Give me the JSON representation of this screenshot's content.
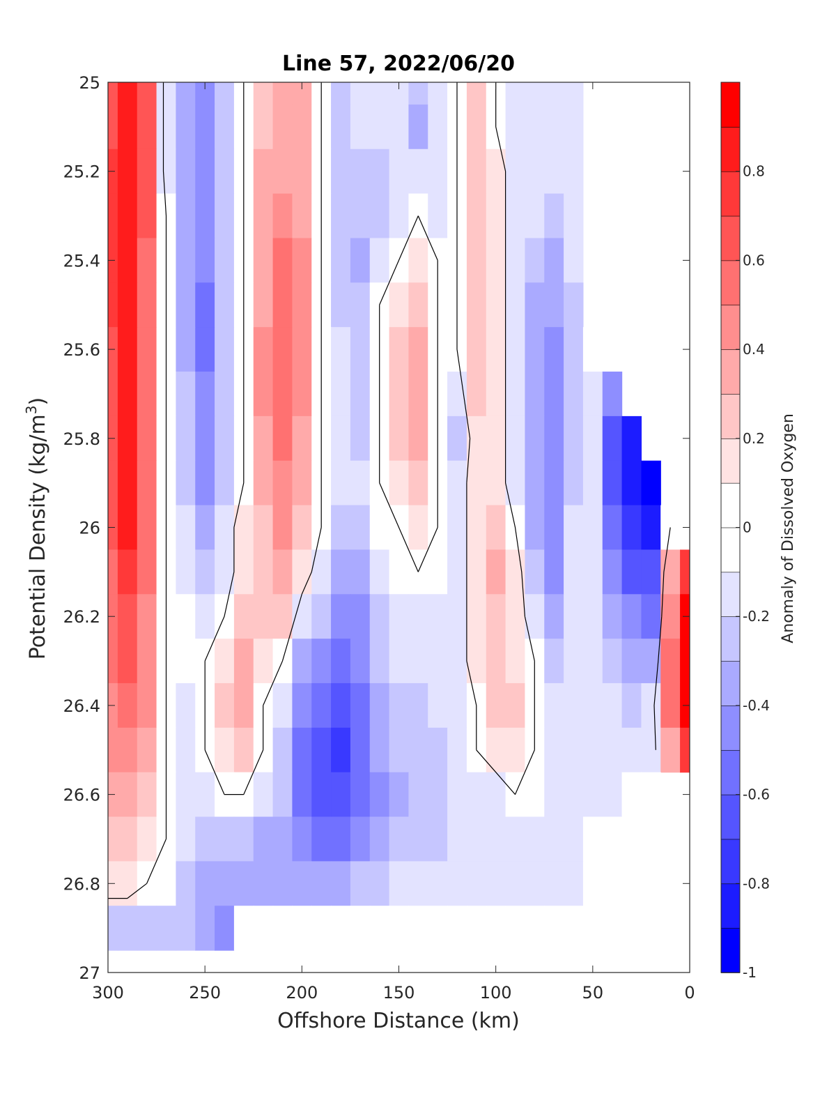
{
  "chart_data": {
    "type": "heatmap",
    "title": "Line 57, 2022/06/20",
    "xlabel": "Offshore Distance (km)",
    "ylabel_main": "Potential Density (kg/m",
    "ylabel_sup": "3",
    "ylabel_close": ")",
    "colorbar_label": "Anomaly of Dissolved Oxygen",
    "xlim": [
      300,
      0
    ],
    "ylim": [
      25,
      27
    ],
    "y_reversed": true,
    "clim": [
      -1,
      1
    ],
    "contour_step": 0.1,
    "grid": false,
    "x_ticks": [
      "300",
      "250",
      "200",
      "150",
      "100",
      "50",
      "0"
    ],
    "y_ticks": [
      "25",
      "25.2",
      "25.4",
      "25.6",
      "25.8",
      "26",
      "26.2",
      "26.4",
      "26.6",
      "26.8",
      "27"
    ],
    "colorbar_ticks": [
      "0.8",
      "0.6",
      "0.4",
      "0.2",
      "0",
      "-0.2",
      "-0.4",
      "-0.6",
      "-0.8",
      "-1"
    ],
    "colors": {
      "positive": "#ff0000",
      "negative": "#0000ff",
      "neutral": "#ffffff",
      "contour_line": "#000000"
    },
    "x_grid_km": [
      300,
      290,
      280,
      270,
      260,
      250,
      240,
      230,
      220,
      210,
      200,
      190,
      180,
      170,
      160,
      150,
      140,
      130,
      120,
      110,
      100,
      90,
      80,
      70,
      60,
      50,
      40,
      30,
      20,
      10,
      0
    ],
    "y_grid_density": [
      25.0,
      25.1,
      25.2,
      25.3,
      25.4,
      25.5,
      25.6,
      25.7,
      25.8,
      25.9,
      26.0,
      26.1,
      26.2,
      26.3,
      26.4,
      26.5,
      26.6,
      26.7,
      26.8,
      26.9
    ],
    "anomaly": [
      [
        0.6,
        0.8,
        0.6,
        -0.1,
        -0.3,
        -0.4,
        -0.2,
        0.0,
        0.2,
        0.3,
        0.3,
        0.0,
        -0.2,
        -0.1,
        -0.1,
        -0.1,
        -0.2,
        -0.1,
        0.0,
        0.2,
        0.0,
        -0.1,
        -0.1,
        -0.1,
        -0.1,
        null,
        null,
        null,
        null,
        null,
        null
      ],
      [
        0.6,
        0.8,
        0.6,
        -0.1,
        -0.3,
        -0.4,
        -0.2,
        0.0,
        0.2,
        0.3,
        0.3,
        0.0,
        -0.2,
        -0.1,
        -0.1,
        -0.1,
        -0.3,
        -0.1,
        0.0,
        0.2,
        0.0,
        -0.1,
        -0.1,
        -0.1,
        -0.1,
        null,
        null,
        null,
        null,
        null,
        null
      ],
      [
        0.7,
        0.8,
        0.6,
        -0.1,
        -0.3,
        -0.4,
        -0.2,
        0.0,
        0.3,
        0.3,
        0.3,
        0.0,
        -0.2,
        -0.2,
        -0.2,
        -0.1,
        -0.1,
        -0.1,
        0.0,
        0.2,
        0.1,
        -0.1,
        -0.1,
        -0.1,
        -0.1,
        null,
        null,
        null,
        null,
        null,
        null
      ],
      [
        0.7,
        0.8,
        0.6,
        0.0,
        -0.3,
        -0.4,
        -0.2,
        0.0,
        0.3,
        0.4,
        0.3,
        0.0,
        -0.2,
        -0.2,
        -0.2,
        -0.1,
        0.0,
        -0.1,
        0.0,
        0.2,
        0.1,
        -0.1,
        -0.1,
        -0.2,
        -0.1,
        null,
        null,
        null,
        null,
        null,
        null
      ],
      [
        0.7,
        0.8,
        0.5,
        0.0,
        -0.3,
        -0.4,
        -0.2,
        0.0,
        0.3,
        0.5,
        0.4,
        0.0,
        -0.2,
        -0.3,
        -0.1,
        0.0,
        0.1,
        0.0,
        0.0,
        0.2,
        0.1,
        -0.1,
        -0.2,
        -0.3,
        -0.1,
        null,
        null,
        null,
        null,
        null,
        null
      ],
      [
        0.7,
        0.8,
        0.5,
        0.0,
        -0.3,
        -0.5,
        -0.2,
        0.0,
        0.3,
        0.5,
        0.4,
        0.0,
        -0.2,
        -0.2,
        0.0,
        0.1,
        0.2,
        0.0,
        0.0,
        0.2,
        0.1,
        -0.1,
        -0.3,
        -0.3,
        -0.2,
        null,
        null,
        null,
        null,
        null,
        null
      ],
      [
        0.6,
        0.8,
        0.5,
        0.0,
        -0.3,
        -0.5,
        -0.2,
        0.0,
        0.4,
        0.5,
        0.4,
        0.0,
        -0.1,
        -0.2,
        0.0,
        0.2,
        0.3,
        0.0,
        0.0,
        0.2,
        0.1,
        -0.1,
        -0.3,
        -0.4,
        -0.2,
        0.0,
        null,
        null,
        null,
        null,
        null
      ],
      [
        0.6,
        0.8,
        0.5,
        0.0,
        -0.2,
        -0.4,
        -0.2,
        0.0,
        0.4,
        0.5,
        0.4,
        0.0,
        -0.1,
        -0.2,
        0.0,
        0.2,
        0.3,
        0.0,
        -0.1,
        0.2,
        0.1,
        -0.1,
        -0.3,
        -0.4,
        -0.2,
        -0.1,
        -0.4,
        null,
        null,
        null,
        null
      ],
      [
        0.6,
        0.8,
        0.5,
        0.0,
        -0.2,
        -0.4,
        -0.2,
        0.0,
        0.3,
        0.5,
        0.3,
        0.0,
        -0.1,
        -0.2,
        0.0,
        0.2,
        0.3,
        0.0,
        -0.2,
        0.1,
        0.1,
        -0.1,
        -0.3,
        -0.4,
        -0.2,
        -0.1,
        -0.6,
        -0.8,
        null,
        null,
        null
      ],
      [
        0.6,
        0.8,
        0.5,
        0.0,
        -0.2,
        -0.4,
        -0.2,
        0.0,
        0.3,
        0.4,
        0.3,
        0.0,
        -0.1,
        -0.1,
        0.0,
        0.1,
        0.2,
        0.0,
        -0.1,
        0.1,
        0.1,
        -0.1,
        -0.3,
        -0.4,
        -0.2,
        -0.1,
        -0.6,
        -0.8,
        -0.9,
        null,
        null
      ],
      [
        0.6,
        0.8,
        0.5,
        0.0,
        -0.1,
        -0.3,
        -0.1,
        0.1,
        0.2,
        0.4,
        0.2,
        0.0,
        -0.2,
        -0.2,
        0.0,
        0.0,
        0.1,
        0.0,
        -0.1,
        0.1,
        0.2,
        0.0,
        -0.3,
        -0.4,
        -0.1,
        -0.1,
        -0.5,
        -0.7,
        -0.8,
        0.0,
        null
      ],
      [
        0.5,
        0.7,
        0.5,
        0.0,
        -0.1,
        -0.2,
        -0.1,
        0.1,
        0.2,
        0.3,
        0.1,
        -0.1,
        -0.3,
        -0.3,
        -0.1,
        0.0,
        0.0,
        0.0,
        -0.1,
        0.1,
        0.3,
        0.1,
        -0.2,
        -0.4,
        -0.1,
        -0.1,
        -0.4,
        -0.6,
        -0.6,
        0.3,
        0.7
      ],
      [
        0.5,
        0.6,
        0.4,
        0.0,
        0.0,
        -0.1,
        0.0,
        0.2,
        0.2,
        0.2,
        -0.1,
        -0.2,
        -0.4,
        -0.4,
        -0.2,
        -0.1,
        -0.1,
        -0.1,
        -0.1,
        0.1,
        0.2,
        0.1,
        -0.1,
        -0.3,
        -0.1,
        -0.1,
        -0.3,
        -0.4,
        -0.5,
        0.4,
        1.0
      ],
      [
        0.5,
        0.6,
        0.4,
        0.0,
        0.0,
        0.0,
        0.1,
        0.3,
        0.1,
        0.0,
        -0.3,
        -0.4,
        -0.5,
        -0.4,
        -0.2,
        -0.1,
        -0.1,
        -0.1,
        -0.1,
        0.1,
        0.2,
        0.1,
        0.0,
        -0.2,
        -0.1,
        -0.1,
        -0.2,
        -0.3,
        -0.3,
        0.5,
        1.0
      ],
      [
        0.4,
        0.5,
        0.4,
        0.0,
        -0.1,
        0.0,
        0.2,
        0.3,
        0.0,
        -0.1,
        -0.4,
        -0.5,
        -0.6,
        -0.5,
        -0.3,
        -0.2,
        -0.2,
        -0.1,
        -0.1,
        0.0,
        0.2,
        0.2,
        0.0,
        -0.1,
        -0.1,
        -0.1,
        -0.1,
        -0.2,
        -0.1,
        0.5,
        1.0
      ],
      [
        0.4,
        0.4,
        0.3,
        0.0,
        -0.1,
        0.0,
        0.1,
        0.2,
        0.0,
        -0.2,
        -0.5,
        -0.6,
        -0.7,
        -0.5,
        -0.3,
        -0.2,
        -0.2,
        -0.2,
        -0.1,
        0.0,
        0.1,
        0.1,
        0.0,
        -0.1,
        -0.1,
        -0.1,
        -0.1,
        -0.1,
        -0.1,
        0.3,
        0.7
      ],
      [
        0.3,
        0.3,
        0.2,
        0.0,
        -0.1,
        -0.1,
        0.0,
        0.0,
        -0.1,
        -0.2,
        -0.5,
        -0.6,
        -0.6,
        -0.5,
        -0.4,
        -0.3,
        -0.2,
        -0.2,
        -0.1,
        -0.1,
        -0.1,
        0.0,
        0.0,
        -0.1,
        -0.1,
        -0.1,
        -0.1,
        0.0,
        0.0,
        null,
        null
      ],
      [
        0.2,
        0.2,
        0.1,
        0.0,
        -0.1,
        -0.2,
        -0.2,
        -0.2,
        -0.3,
        -0.3,
        -0.4,
        -0.5,
        -0.5,
        -0.4,
        -0.3,
        -0.2,
        -0.2,
        -0.2,
        -0.1,
        -0.1,
        -0.1,
        -0.1,
        -0.1,
        -0.1,
        -0.1,
        0.0,
        0.0,
        0.0,
        0.0,
        null,
        null
      ],
      [
        0.1,
        0.1,
        0.0,
        0.0,
        -0.2,
        -0.3,
        -0.3,
        -0.3,
        -0.3,
        -0.3,
        -0.3,
        -0.3,
        -0.3,
        -0.2,
        -0.2,
        -0.1,
        -0.1,
        -0.1,
        -0.1,
        -0.1,
        -0.1,
        -0.1,
        -0.1,
        -0.1,
        -0.1,
        0.0,
        0.0,
        0.0,
        0.0,
        null,
        null
      ],
      [
        -0.2,
        -0.2,
        -0.2,
        -0.2,
        -0.2,
        -0.3,
        -0.4,
        0.0,
        0.0,
        0.0,
        0.0,
        0.0,
        0.0,
        0.0,
        0.0,
        0.0,
        0.0,
        0.0,
        0.0,
        0.0,
        0.0,
        0.0,
        0.0,
        0.0,
        0.0,
        0.0,
        0.0,
        0.0,
        0.0,
        null,
        null
      ]
    ]
  }
}
